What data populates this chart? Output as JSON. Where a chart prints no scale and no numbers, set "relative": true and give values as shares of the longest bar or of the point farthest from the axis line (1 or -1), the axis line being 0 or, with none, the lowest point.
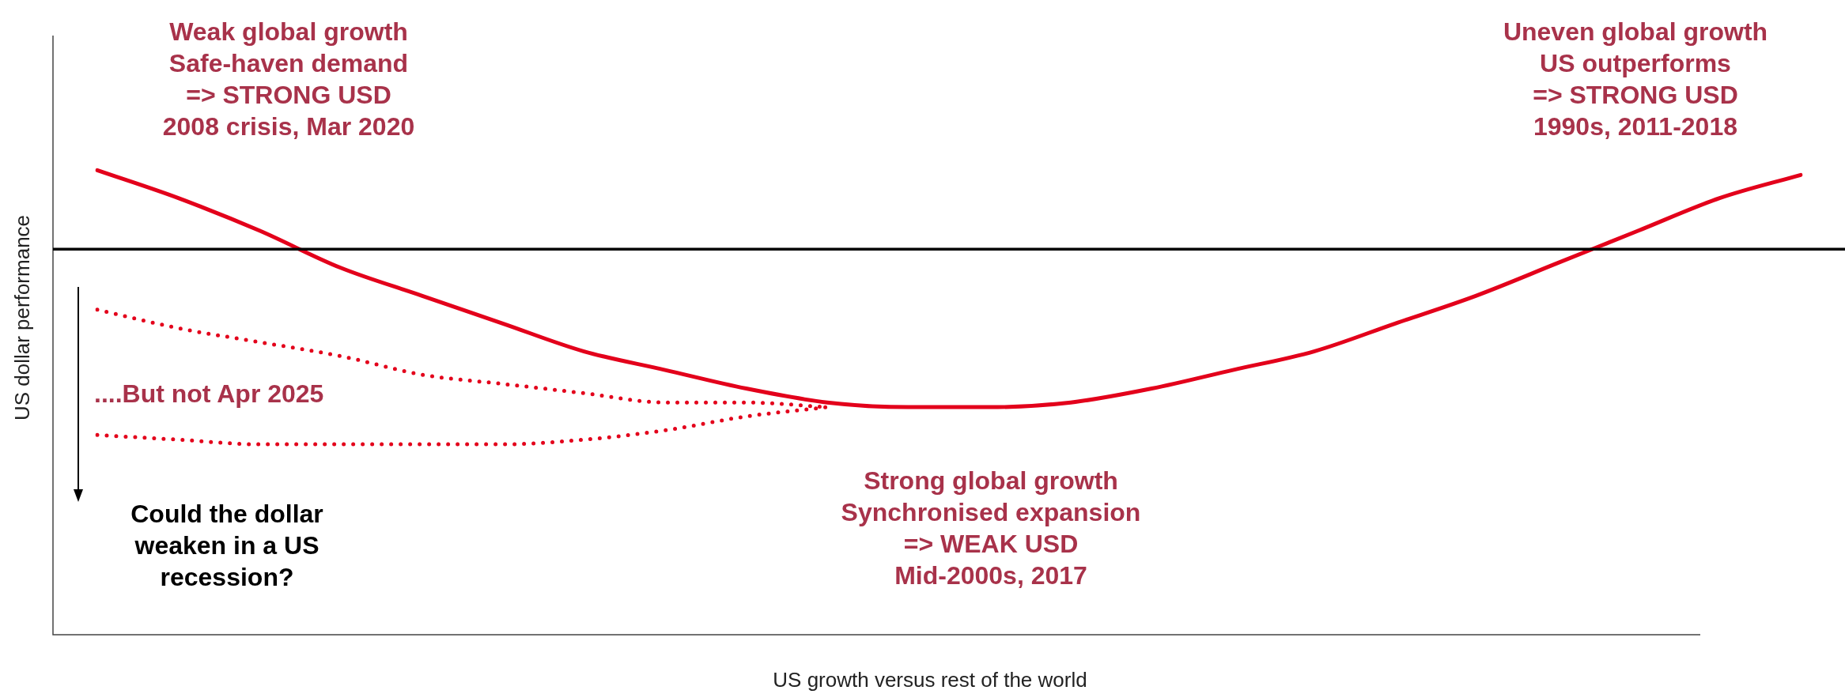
{
  "chart_data": {
    "type": "line",
    "relative": true,
    "xlabel": "US growth versus rest of the world",
    "ylabel": "US dollar performance",
    "categories": [
      null,
      null,
      null,
      null,
      null,
      null,
      null,
      null,
      null,
      null,
      null,
      null,
      null,
      null,
      null,
      null,
      null,
      null,
      null,
      null,
      null,
      null
    ],
    "series": [
      {
        "color": "#e3001b",
        "line_style": "solid",
        "values": [
          1.0,
          0.94,
          0.87,
          0.79,
          0.73,
          0.67,
          0.61,
          0.57,
          0.53,
          0.5,
          0.49,
          0.49,
          0.5,
          0.53,
          0.57,
          0.61,
          0.67,
          0.73,
          0.8,
          0.87,
          0.94,
          0.99
        ]
      },
      {
        "color": "#e3001b",
        "line_style": "dotted",
        "values": [
          0.7,
          0.66,
          0.63,
          0.6,
          0.56,
          0.54,
          0.52,
          0.5,
          0.5,
          0.49,
          null,
          null,
          null,
          null,
          null,
          null,
          null,
          null,
          null,
          null,
          null,
          null
        ]
      },
      {
        "color": "#e3001b",
        "line_style": "dotted",
        "values": [
          0.43,
          0.42,
          0.41,
          0.41,
          0.41,
          0.41,
          0.42,
          0.44,
          0.47,
          0.49,
          null,
          null,
          null,
          null,
          null,
          null,
          null,
          null,
          null,
          null,
          null,
          null
        ]
      }
    ],
    "ref_lines": [
      {
        "axis": "y",
        "value": 0.83,
        "color": "#000000"
      }
    ],
    "annotations": [
      "Weak global growth\nSafe-haven demand\n=> STRONG USD\n2008 crisis, Mar 2020",
      "Uneven global growth\nUS outperforms\n=> STRONG USD\n1990s, 2011-2018",
      "Strong global growth\nSynchronised expansion\n=> WEAK USD\nMid-2000s, 2017",
      "....But not Apr 2025",
      "Could the dollar\nweaken in a US\nrecession?"
    ],
    "legend": false,
    "marker": "none"
  }
}
